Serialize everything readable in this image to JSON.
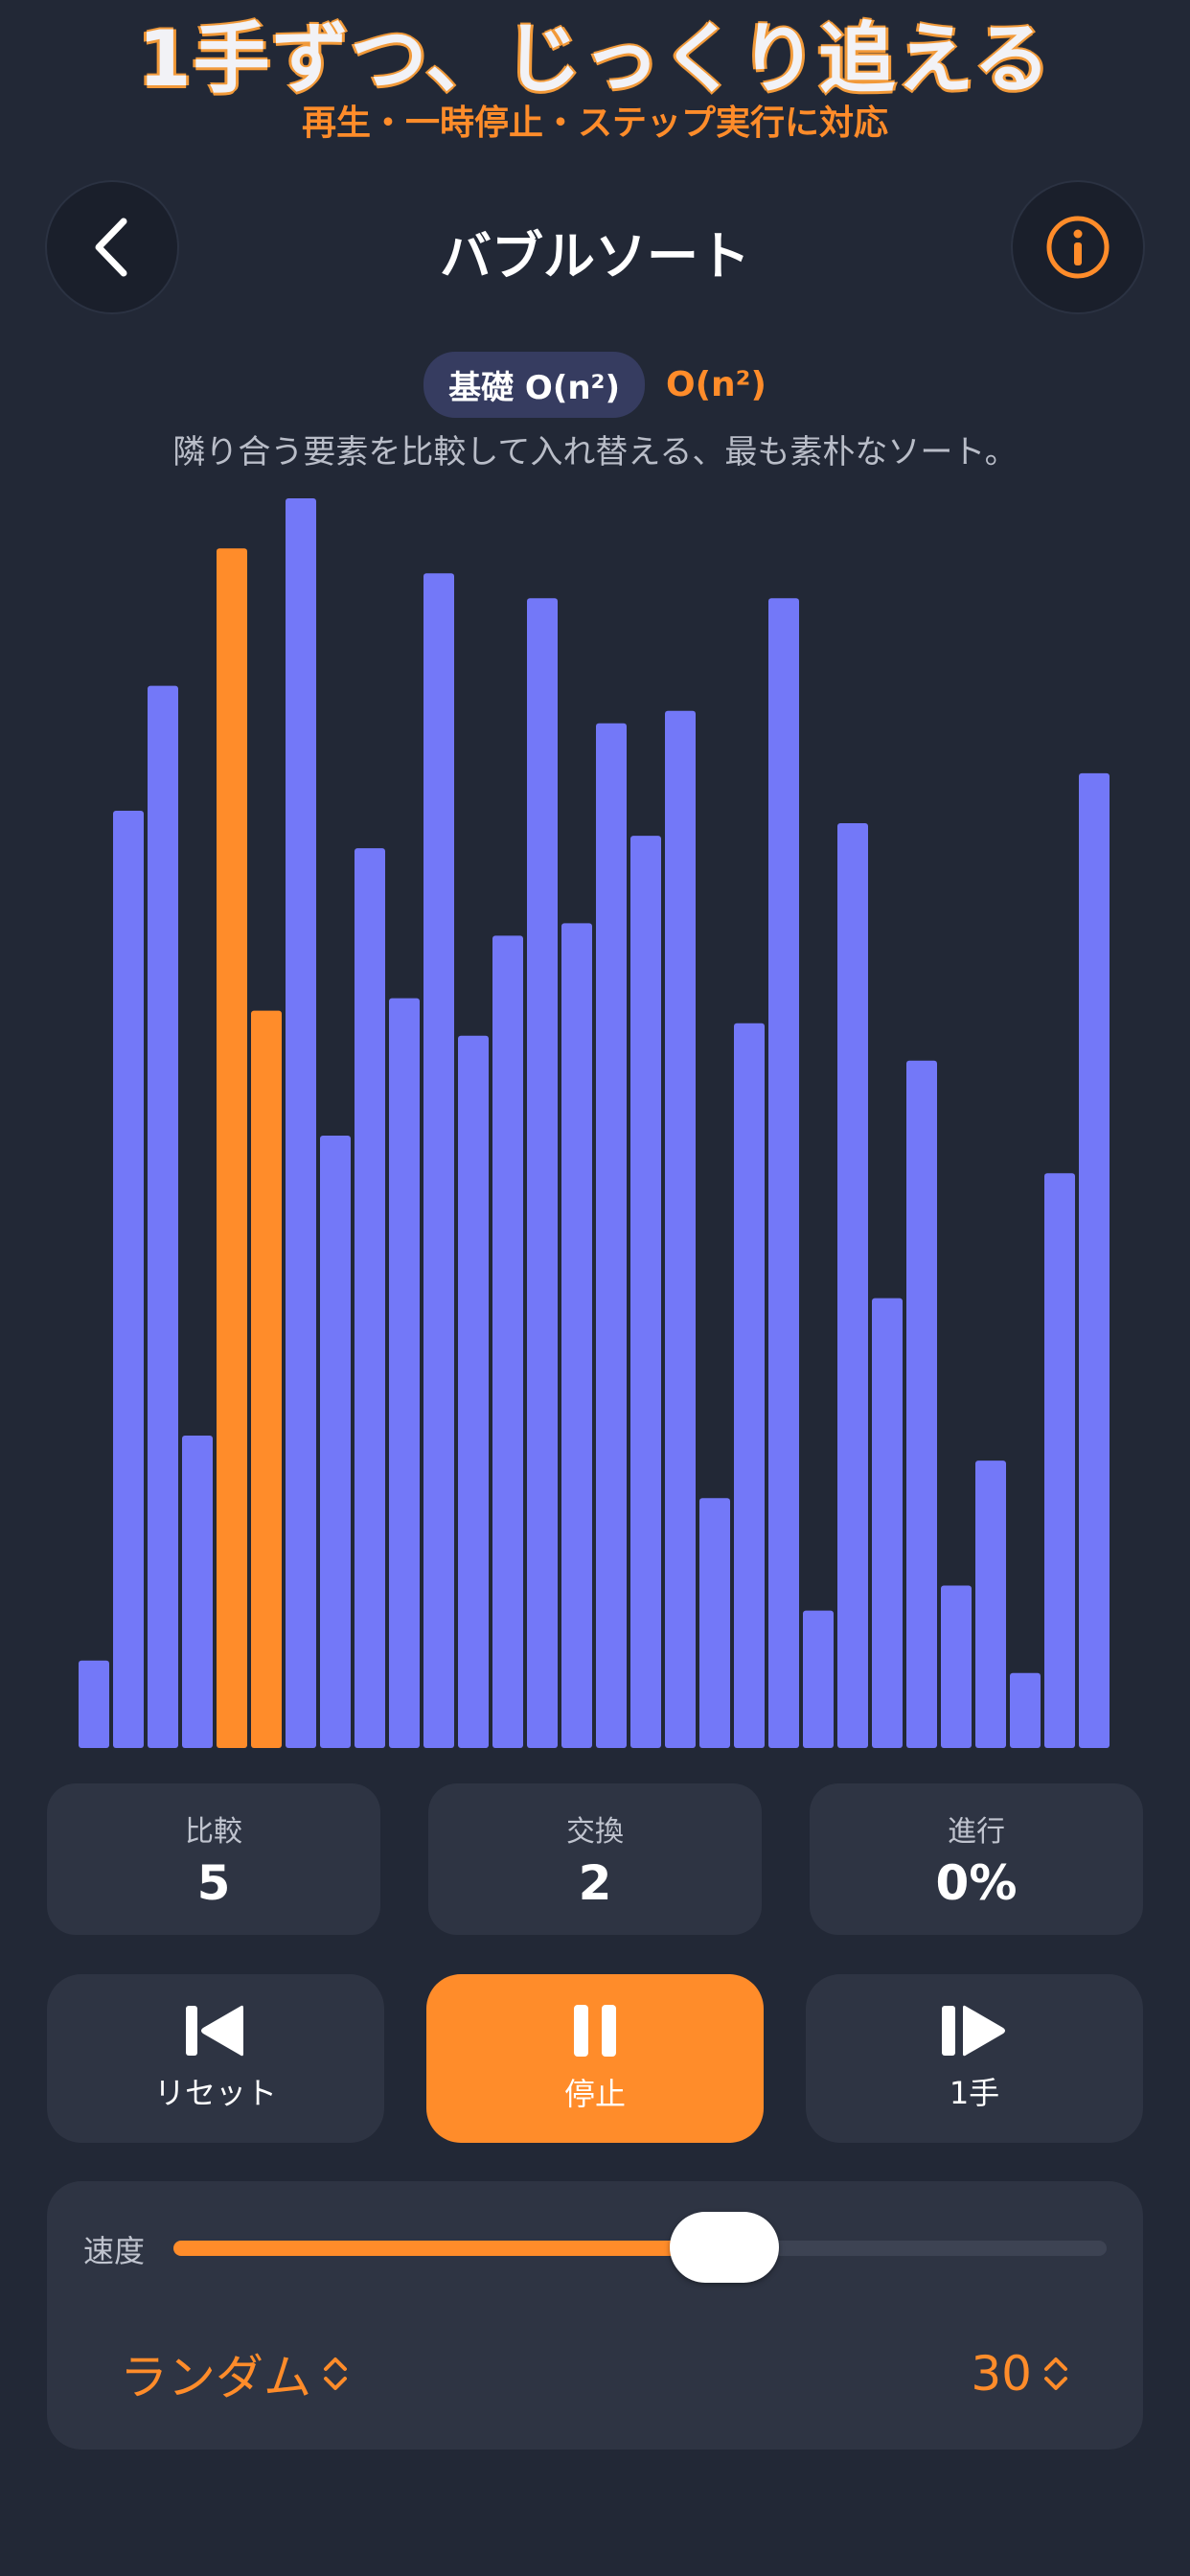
{
  "promo": {
    "title": "1手ずつ、じっくり追える",
    "subtitle": "再生・一時停止・ステップ実行に対応"
  },
  "nav": {
    "title": "バブルソート",
    "back_icon": "chevron-left-icon",
    "info_icon": "info-icon"
  },
  "algorithm": {
    "badge": "基礎 O(n²)",
    "complexity": "O(n²)",
    "description": "隣り合う要素を比較して入れ替える、最も素朴なソート。"
  },
  "chart_data": {
    "type": "bar",
    "max_value": 100,
    "values": [
      7,
      75,
      85,
      25,
      96,
      59,
      100,
      49,
      72,
      60,
      94,
      57,
      65,
      92,
      66,
      82,
      73,
      83,
      20,
      58,
      92,
      11,
      74,
      36,
      55,
      13,
      23,
      6,
      46,
      78
    ],
    "highlighted": [
      4,
      5
    ],
    "colors": {
      "bar": "#7378f8",
      "highlight": "#ff8c2a"
    }
  },
  "stats": [
    {
      "label": "比較",
      "value": "5"
    },
    {
      "label": "交換",
      "value": "2"
    },
    {
      "label": "進行",
      "value": "0%"
    }
  ],
  "controls": {
    "reset_label": "リセット",
    "pause_label": "停止",
    "step_label": "1手"
  },
  "settings": {
    "speed_label": "速度",
    "speed_fraction": 0.59,
    "data_pattern": "ランダム",
    "count": "30"
  },
  "colors": {
    "background": "#222836",
    "accent": "#ff8c2a",
    "bar": "#7378f8",
    "card": "#2e3443"
  }
}
